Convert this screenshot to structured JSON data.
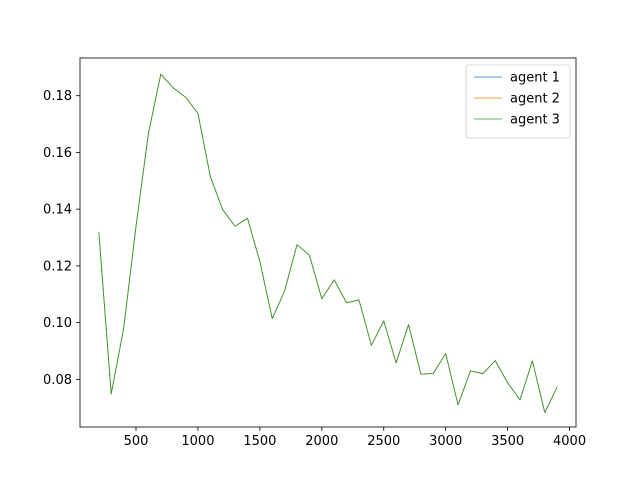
{
  "chart_data": {
    "type": "line",
    "title": "",
    "xlabel": "",
    "ylabel": "",
    "xlim": [
      48,
      4052
    ],
    "ylim": [
      0.0632,
      0.1933
    ],
    "grid": false,
    "legend_position": "top-right",
    "x_ticks": [
      500,
      1000,
      1500,
      2000,
      2500,
      3000,
      3500,
      4000
    ],
    "y_ticks": [
      0.08,
      0.1,
      0.12,
      0.14,
      0.16,
      0.18
    ],
    "x_tick_labels": [
      "500",
      "1000",
      "1500",
      "2000",
      "2500",
      "3000",
      "3500",
      "4000"
    ],
    "y_tick_labels": [
      "0.08",
      "0.10",
      "0.12",
      "0.14",
      "0.16",
      "0.18"
    ],
    "x": [
      200,
      300,
      400,
      500,
      600,
      700,
      800,
      900,
      1000,
      1100,
      1200,
      1300,
      1400,
      1500,
      1600,
      1700,
      1800,
      1900,
      2000,
      2100,
      2200,
      2300,
      2400,
      2500,
      2600,
      2700,
      2800,
      2900,
      3000,
      3100,
      3200,
      3300,
      3400,
      3500,
      3600,
      3700,
      3800,
      3900
    ],
    "series": [
      {
        "name": "agent 1",
        "color": "#1f77b4",
        "values": [
          0.1318,
          0.0749,
          0.0978,
          0.1339,
          0.1666,
          0.1876,
          0.1828,
          0.1795,
          0.1738,
          0.1515,
          0.1398,
          0.134,
          0.1368,
          0.1215,
          0.1014,
          0.1112,
          0.1275,
          0.1238,
          0.1084,
          0.1151,
          0.107,
          0.108,
          0.092,
          0.1006,
          0.0858,
          0.0993,
          0.0818,
          0.0821,
          0.0891,
          0.071,
          0.083,
          0.082,
          0.0866,
          0.0788,
          0.0728,
          0.0865,
          0.0683,
          0.0773
        ]
      },
      {
        "name": "agent 2",
        "color": "#ff7f0e",
        "values": [
          0.1318,
          0.0749,
          0.0978,
          0.1339,
          0.1666,
          0.1876,
          0.1828,
          0.1795,
          0.1738,
          0.1515,
          0.1398,
          0.134,
          0.1368,
          0.1215,
          0.1014,
          0.1112,
          0.1275,
          0.1238,
          0.1084,
          0.1151,
          0.107,
          0.108,
          0.092,
          0.1006,
          0.0858,
          0.0993,
          0.0818,
          0.0821,
          0.0891,
          0.071,
          0.083,
          0.082,
          0.0866,
          0.0788,
          0.0728,
          0.0865,
          0.0683,
          0.0773
        ]
      },
      {
        "name": "agent 3",
        "color": "#2ca02c",
        "values": [
          0.1318,
          0.0749,
          0.0978,
          0.1339,
          0.1666,
          0.1876,
          0.1828,
          0.1795,
          0.1738,
          0.1515,
          0.1398,
          0.134,
          0.1368,
          0.1215,
          0.1014,
          0.1112,
          0.1275,
          0.1238,
          0.1084,
          0.1151,
          0.107,
          0.108,
          0.092,
          0.1006,
          0.0858,
          0.0993,
          0.0818,
          0.0821,
          0.0891,
          0.071,
          0.083,
          0.082,
          0.0866,
          0.0788,
          0.0728,
          0.0865,
          0.0683,
          0.0773
        ]
      }
    ]
  }
}
